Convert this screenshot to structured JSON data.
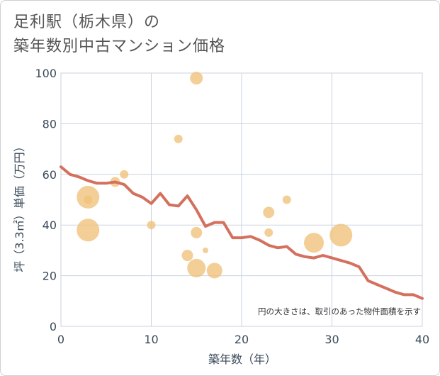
{
  "title_line1": "足利駅（栃木県）の",
  "title_line2": "築年数別中古マンション価格",
  "chart_data": {
    "type": "scatter",
    "xlabel": "築年数（年）",
    "ylabel": "坪（3.3㎡）単価（万円）",
    "xlim": [
      0,
      40
    ],
    "ylim": [
      0,
      100
    ],
    "xticks": [
      0,
      10,
      20,
      30,
      40
    ],
    "yticks": [
      0,
      20,
      40,
      60,
      80,
      100
    ],
    "grid": true,
    "note": "円の大きさは、取引のあった物件面積を示す",
    "colors": {
      "bubble": "#f0c27a",
      "line": "#d4705e",
      "grid": "#c9d3df"
    },
    "bubbles": [
      {
        "x": 3,
        "y": 51,
        "size": 16
      },
      {
        "x": 3,
        "y": 50,
        "size": 6
      },
      {
        "x": 3,
        "y": 38,
        "size": 16
      },
      {
        "x": 6,
        "y": 57,
        "size": 7
      },
      {
        "x": 7,
        "y": 60,
        "size": 6
      },
      {
        "x": 10,
        "y": 40,
        "size": 6
      },
      {
        "x": 13,
        "y": 74,
        "size": 6
      },
      {
        "x": 14,
        "y": 28,
        "size": 8
      },
      {
        "x": 15,
        "y": 98,
        "size": 9
      },
      {
        "x": 15,
        "y": 37,
        "size": 8
      },
      {
        "x": 15,
        "y": 23,
        "size": 13
      },
      {
        "x": 16,
        "y": 30,
        "size": 4
      },
      {
        "x": 17,
        "y": 22,
        "size": 11
      },
      {
        "x": 23,
        "y": 45,
        "size": 8
      },
      {
        "x": 23,
        "y": 37,
        "size": 6
      },
      {
        "x": 25,
        "y": 50,
        "size": 6
      },
      {
        "x": 28,
        "y": 33,
        "size": 14
      },
      {
        "x": 31,
        "y": 36,
        "size": 16
      }
    ],
    "trend": [
      {
        "x": 0,
        "y": 63
      },
      {
        "x": 1,
        "y": 60
      },
      {
        "x": 2,
        "y": 59
      },
      {
        "x": 3,
        "y": 57.5
      },
      {
        "x": 4,
        "y": 56.5
      },
      {
        "x": 5,
        "y": 56.5
      },
      {
        "x": 6,
        "y": 57
      },
      {
        "x": 7,
        "y": 56
      },
      {
        "x": 8,
        "y": 52.5
      },
      {
        "x": 9,
        "y": 51
      },
      {
        "x": 10,
        "y": 48.5
      },
      {
        "x": 11,
        "y": 52.5
      },
      {
        "x": 12,
        "y": 48
      },
      {
        "x": 13,
        "y": 47.5
      },
      {
        "x": 14,
        "y": 51.5
      },
      {
        "x": 15,
        "y": 46
      },
      {
        "x": 16,
        "y": 39.5
      },
      {
        "x": 17,
        "y": 41
      },
      {
        "x": 18,
        "y": 41
      },
      {
        "x": 19,
        "y": 35
      },
      {
        "x": 20,
        "y": 35
      },
      {
        "x": 21,
        "y": 35.5
      },
      {
        "x": 22,
        "y": 34
      },
      {
        "x": 23,
        "y": 32
      },
      {
        "x": 24,
        "y": 31
      },
      {
        "x": 25,
        "y": 31.5
      },
      {
        "x": 26,
        "y": 28.5
      },
      {
        "x": 27,
        "y": 27.5
      },
      {
        "x": 28,
        "y": 27
      },
      {
        "x": 29,
        "y": 28
      },
      {
        "x": 30,
        "y": 27
      },
      {
        "x": 31,
        "y": 26
      },
      {
        "x": 32,
        "y": 25
      },
      {
        "x": 33,
        "y": 23.5
      },
      {
        "x": 34,
        "y": 18
      },
      {
        "x": 35,
        "y": 16.5
      },
      {
        "x": 36,
        "y": 15
      },
      {
        "x": 37,
        "y": 13.5
      },
      {
        "x": 38,
        "y": 12.5
      },
      {
        "x": 39,
        "y": 12.5
      },
      {
        "x": 40,
        "y": 11
      }
    ]
  }
}
